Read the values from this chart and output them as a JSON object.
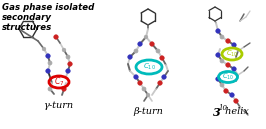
{
  "title_lines": [
    "Gas phase isolated",
    "secondary",
    "structures"
  ],
  "label1": "γ-turn",
  "label2": "β-turn",
  "label3_main": "3",
  "label3_sub": "10",
  "label3_suffix": " helix",
  "ring1_color": "#dd0000",
  "ring2_color": "#00bbbb",
  "ring3a_color": "#aacc00",
  "ring3b_color": "#00bbbb",
  "bond_color_light": "#c8c8c8",
  "bond_color_dark": "#686868",
  "bond_color_black": "#303030",
  "atom_N": "#3333bb",
  "atom_O": "#cc2222",
  "atom_C": "#aaaaaa",
  "atom_H": "#dddddd",
  "bg_color": "#ffffff",
  "title_color": "#000000",
  "label_color": "#000000",
  "fig_width": 2.66,
  "fig_height": 1.29,
  "dpi": 100
}
